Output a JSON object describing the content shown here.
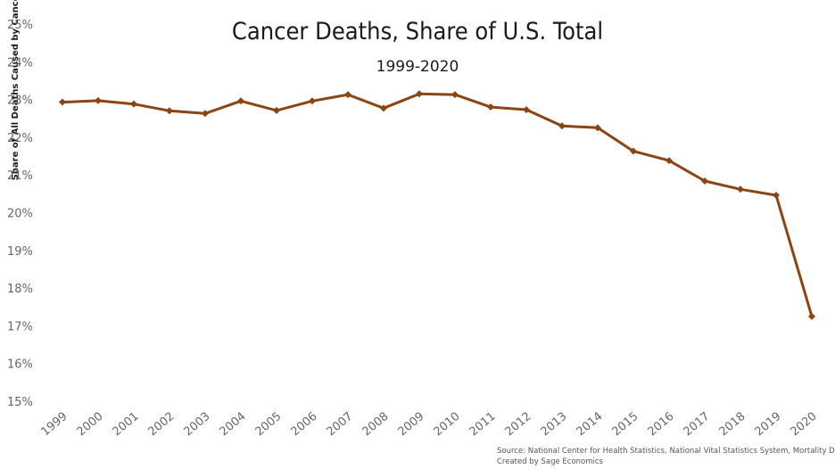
{
  "chart_data": {
    "type": "line",
    "title": "Cancer Deaths, Share of U.S. Total",
    "subtitle": "1999-2020",
    "ylabel": "Share of All Deaths Caused by Cancer",
    "xlabel": "",
    "x": [
      "1999",
      "2000",
      "2001",
      "2002",
      "2003",
      "2004",
      "2005",
      "2006",
      "2007",
      "2008",
      "2009",
      "2010",
      "2011",
      "2012",
      "2013",
      "2014",
      "2015",
      "2016",
      "2017",
      "2018",
      "2019",
      "2020"
    ],
    "y": [
      22.93,
      22.97,
      22.88,
      22.7,
      22.63,
      22.96,
      22.71,
      22.96,
      23.13,
      22.77,
      23.15,
      23.13,
      22.8,
      22.73,
      22.3,
      22.25,
      21.63,
      21.38,
      20.84,
      20.62,
      20.46,
      17.25
    ],
    "ylim": [
      15,
      25
    ],
    "yticks": [
      "15%",
      "16%",
      "17%",
      "18%",
      "19%",
      "20%",
      "21%",
      "22%",
      "23%",
      "24%",
      "25%"
    ],
    "grid": false,
    "line_color": "#8b4513",
    "source": "Source: National Center for Health Statistics, National Vital Statistics System, Mortality Data",
    "credit": "Created by Sage Economics"
  }
}
